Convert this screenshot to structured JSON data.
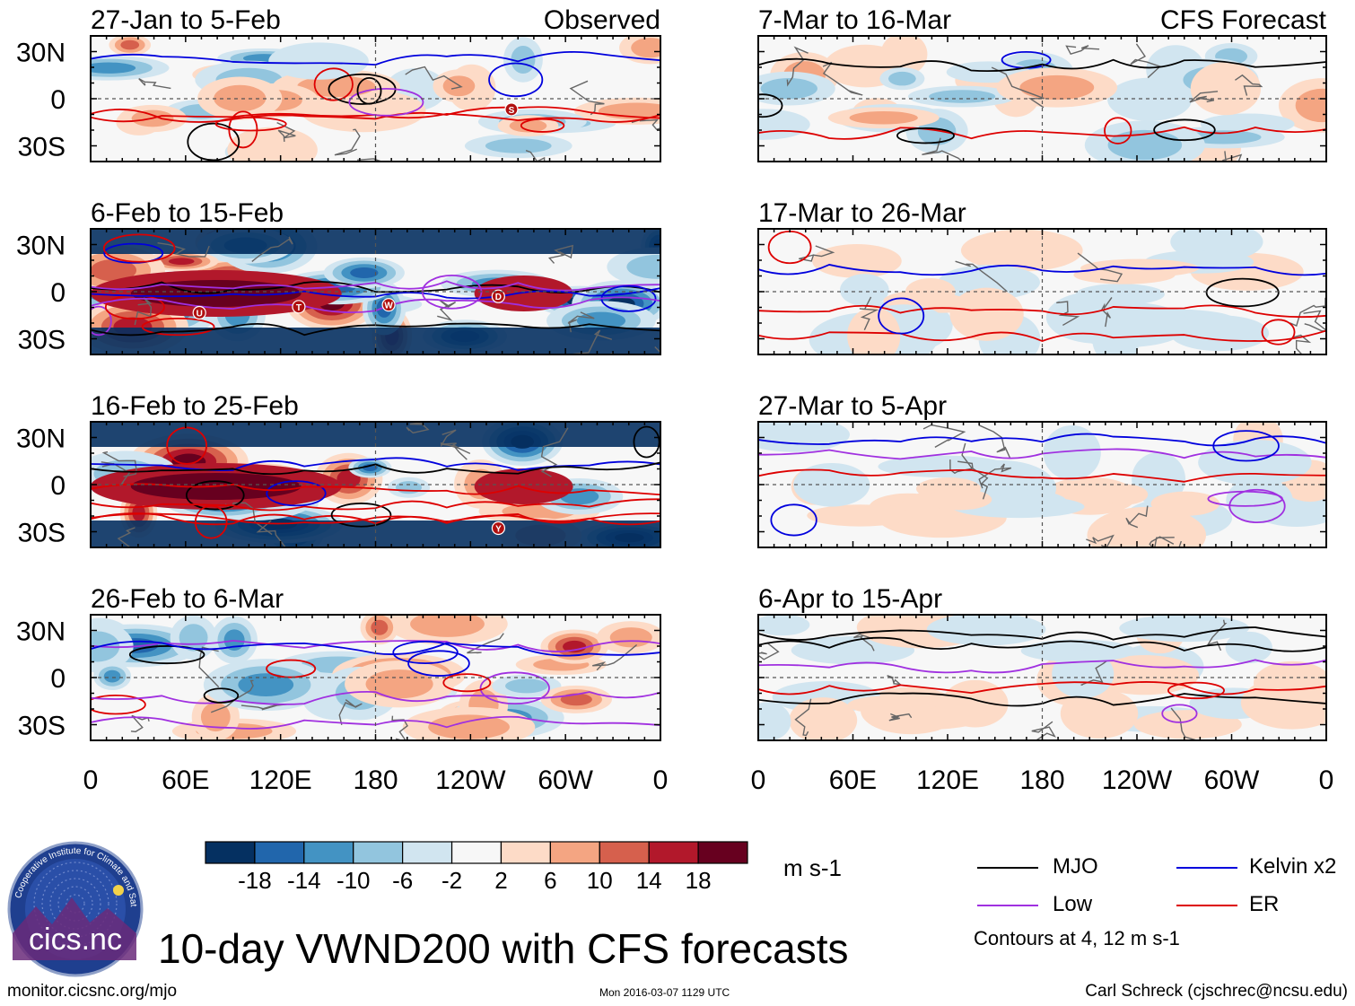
{
  "figure": {
    "title": "10-day VWND200 with CFS forecasts",
    "source_link": "monitor.cicsnc.org/mjo",
    "timestamp": "Mon 2016-03-07 1129 UTC",
    "author": "Carl Schreck (cjschrec@ncsu.edu)"
  },
  "columns": [
    {
      "label": "Observed"
    },
    {
      "label": "CFS Forecast"
    }
  ],
  "panels": [
    {
      "period": "27-Jan to 5-Feb",
      "column": 0,
      "row": 0,
      "intensity": 0.55,
      "seed": 11,
      "labels": [
        "S"
      ]
    },
    {
      "period": "6-Feb to 15-Feb",
      "column": 0,
      "row": 1,
      "intensity": 1.0,
      "seed": 23,
      "labels": [
        "U",
        "D",
        "T",
        "W"
      ]
    },
    {
      "period": "16-Feb to 25-Feb",
      "column": 0,
      "row": 2,
      "intensity": 1.0,
      "seed": 37,
      "labels": [
        "Y"
      ]
    },
    {
      "period": "26-Feb to 6-Mar",
      "column": 0,
      "row": 3,
      "intensity": 0.75,
      "seed": 41,
      "labels": []
    },
    {
      "period": "7-Mar to 16-Mar",
      "column": 1,
      "row": 0,
      "intensity": 0.45,
      "seed": 53,
      "labels": []
    },
    {
      "period": "17-Mar to 26-Mar",
      "column": 1,
      "row": 1,
      "intensity": 0.22,
      "seed": 61,
      "labels": []
    },
    {
      "period": "27-Mar to 5-Apr",
      "column": 1,
      "row": 2,
      "intensity": 0.16,
      "seed": 71,
      "labels": []
    },
    {
      "period": "6-Apr to 15-Apr",
      "column": 1,
      "row": 3,
      "intensity": 0.13,
      "seed": 83,
      "labels": []
    }
  ],
  "axes": {
    "lat_labels": [
      "30N",
      "0",
      "30S"
    ],
    "lon_labels": [
      "0",
      "60E",
      "120E",
      "180",
      "120W",
      "60W",
      "0"
    ],
    "lon_values": [
      0,
      60,
      120,
      180,
      240,
      300,
      360
    ],
    "lat_values": [
      30,
      0,
      -30
    ],
    "lat_range": [
      -40,
      40
    ],
    "lon_range": [
      0,
      360
    ]
  },
  "colorbar": {
    "tick_labels": [
      "-18",
      "-14",
      "-10",
      "-6",
      "-2",
      "2",
      "6",
      "10",
      "14",
      "18"
    ],
    "colors": [
      "#053061",
      "#2166ac",
      "#4393c3",
      "#92c5de",
      "#d1e5f0",
      "#f7f7f7",
      "#fddbc7",
      "#f4a582",
      "#d6604d",
      "#b2182b",
      "#67001f"
    ],
    "unit": "m s-1"
  },
  "legend": {
    "items": [
      {
        "label": "MJO",
        "color": "#000000"
      },
      {
        "label": "Kelvin x2",
        "color": "#0000dd"
      },
      {
        "label": "Low",
        "color": "#a030e0"
      },
      {
        "label": "ER",
        "color": "#dd0000"
      }
    ],
    "note": "Contours at 4, 12 m s-1"
  },
  "logo": {
    "text": "cics.nc",
    "ring_text": "Cooperative Institute for Climate and Satellites"
  }
}
